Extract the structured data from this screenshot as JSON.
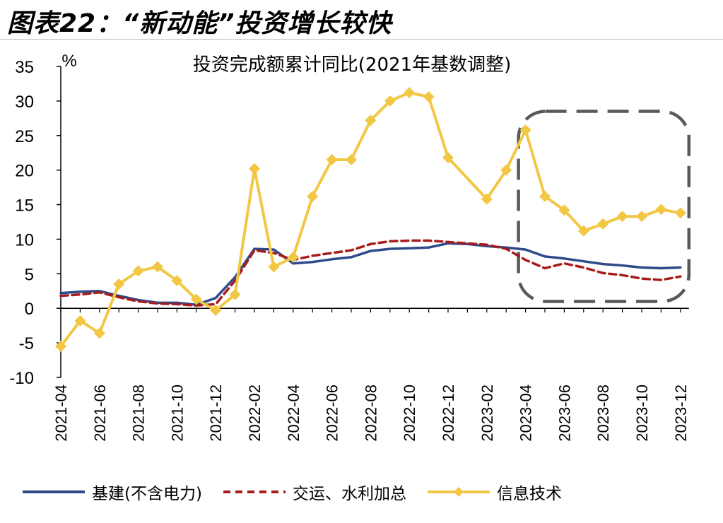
{
  "header": {
    "title": "图表22：“新动能”投资增长较快"
  },
  "chart_data": {
    "type": "line",
    "title": "投资完成额累计同比(2021年基数调整)",
    "ylabel": "%",
    "ylim": [
      -10,
      35
    ],
    "yticks": [
      "35",
      "30",
      "25",
      "20",
      "15",
      "10",
      "5",
      "0",
      "-5",
      "-10"
    ],
    "categories": [
      "2021-04",
      "2021-05",
      "2021-06",
      "2021-07",
      "2021-08",
      "2021-09",
      "2021-10",
      "2021-11",
      "2021-12",
      "2022-01",
      "2022-02",
      "2022-03",
      "2022-04",
      "2022-05",
      "2022-06",
      "2022-07",
      "2022-08",
      "2022-09",
      "2022-10",
      "2022-11",
      "2022-12",
      "2023-01",
      "2023-02",
      "2023-03",
      "2023-04",
      "2023-05",
      "2023-06",
      "2023-07",
      "2023-08",
      "2023-09",
      "2023-10",
      "2023-11",
      "2023-12"
    ],
    "xtick_labels": [
      "2021-04",
      "2021-06",
      "2021-08",
      "2021-10",
      "2021-12",
      "2022-02",
      "2022-04",
      "2022-06",
      "2022-08",
      "2022-10",
      "2022-12",
      "2023-02",
      "2023-04",
      "2023-06",
      "2023-08",
      "2023-10",
      "2023-12"
    ],
    "series": [
      {
        "name": "基建(不含电力)",
        "color": "#2E4A8B",
        "style": "solid",
        "values": [
          2.2,
          2.4,
          2.5,
          1.8,
          1.2,
          0.8,
          0.8,
          0.5,
          1.5,
          4.5,
          8.6,
          8.5,
          6.5,
          6.7,
          7.1,
          7.4,
          8.3,
          8.6,
          8.7,
          8.8,
          9.4,
          9.3,
          9.0,
          8.8,
          8.5,
          7.5,
          7.2,
          6.8,
          6.4,
          6.2,
          5.9,
          5.8,
          5.9
        ]
      },
      {
        "name": "交运、水利加总",
        "color": "#A81C1C",
        "style": "dashed",
        "values": [
          1.8,
          2.0,
          2.3,
          1.6,
          1.0,
          0.7,
          0.6,
          0.4,
          0.6,
          4.0,
          8.4,
          8.0,
          7.0,
          7.6,
          8.0,
          8.4,
          9.3,
          9.7,
          9.8,
          9.8,
          9.6,
          9.4,
          9.2,
          8.6,
          7.0,
          5.8,
          6.5,
          5.9,
          5.1,
          4.8,
          4.3,
          4.1,
          4.6
        ]
      },
      {
        "name": "信息技术",
        "color": "#F2C744",
        "style": "solid-diamond",
        "values": [
          -5.5,
          -1.8,
          -3.6,
          3.5,
          5.4,
          6.0,
          4.0,
          1.3,
          -0.3,
          2.0,
          20.2,
          6.0,
          7.4,
          16.2,
          21.5,
          21.5,
          27.2,
          30.0,
          31.2,
          30.6,
          21.8,
          null,
          15.8,
          20.0,
          25.8,
          16.2,
          14.2,
          11.2,
          12.2,
          13.3,
          13.3,
          14.3,
          13.8
        ]
      }
    ],
    "highlight": {
      "from": "2023-04",
      "to": "2023-12",
      "ymin": 1,
      "ymax": 28.5,
      "style": "dashed-rounded",
      "color": "#595959"
    },
    "legend_position": "bottom",
    "grid": false
  }
}
